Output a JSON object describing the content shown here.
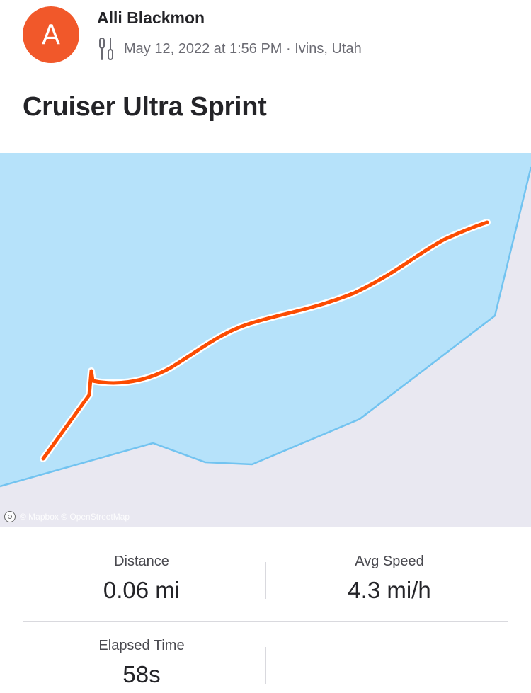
{
  "header": {
    "avatar_initial": "A",
    "athlete_name": "Alli Blackmon",
    "activity_icon": "paddle-icon",
    "date_location": "May 12, 2022 at 1:56 PM · Ivins, Utah",
    "activity_title": "Cruiser Ultra Sprint"
  },
  "map": {
    "attribution": "© Mapbox © OpenStreetMap",
    "route_color": "#fc4c02",
    "water_color": "#b6e2fa",
    "land_color": "#e9e8f1"
  },
  "stats": [
    {
      "label": "Distance",
      "value": "0.06 mi"
    },
    {
      "label": "Avg Speed",
      "value": "4.3 mi/h"
    },
    {
      "label": "Elapsed Time",
      "value": "58s"
    }
  ],
  "colors": {
    "accent": "#f1582a",
    "text_primary": "#242428",
    "text_secondary": "#6b6b73"
  }
}
